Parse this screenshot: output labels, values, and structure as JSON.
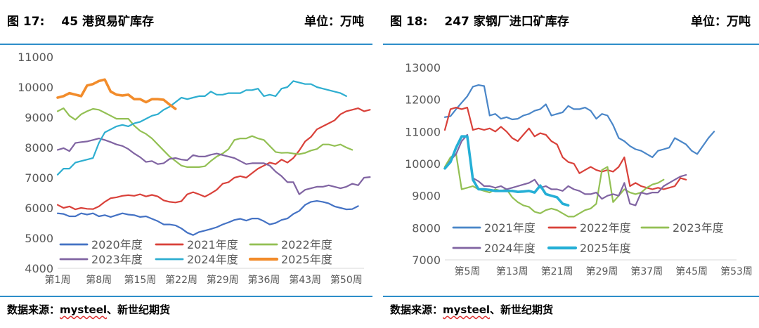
{
  "left": {
    "figure_label": "图 17:",
    "title": "45 港贸易矿库存",
    "unit_label": "单位：万吨",
    "source": {
      "prefix": "数据来源：",
      "name": "mysteel",
      "suffix": "、新世纪期货"
    }
  },
  "right": {
    "figure_label": "图 18:",
    "title": "247 家钢厂进口矿库存",
    "unit_label": "单位：万吨",
    "source": {
      "prefix": "数据来源：",
      "name": "mysteel",
      "suffix": "、新世纪期货"
    }
  },
  "chart_data": [
    {
      "type": "line",
      "title": "45 港贸易矿库存",
      "ylim": [
        4000,
        11000
      ],
      "yticks": [
        "4000",
        "5000",
        "6000",
        "7000",
        "8000",
        "9000",
        "10000",
        "11000"
      ],
      "xlim": [
        1,
        53
      ],
      "xticks": [
        {
          "x": 1,
          "label": "第1周"
        },
        {
          "x": 8,
          "label": "第8周"
        },
        {
          "x": 15,
          "label": "第15周"
        },
        {
          "x": 22,
          "label": "第22周"
        },
        {
          "x": 29,
          "label": "第29周"
        },
        {
          "x": 36,
          "label": "第36周"
        },
        {
          "x": 43,
          "label": "第43周"
        },
        {
          "x": 50,
          "label": "第50周"
        }
      ],
      "grid": false,
      "legend_placement": "bottom",
      "series": [
        {
          "name": "2020年度",
          "color": "#4472c4",
          "width": 2.2,
          "x_start": 1,
          "values": [
            5820,
            5800,
            5720,
            5720,
            5820,
            5780,
            5820,
            5720,
            5760,
            5700,
            5760,
            5820,
            5780,
            5760,
            5700,
            5720,
            5640,
            5560,
            5450,
            5450,
            5420,
            5320,
            5180,
            5100,
            5200,
            5250,
            5300,
            5360,
            5450,
            5520,
            5600,
            5640,
            5580,
            5650,
            5650,
            5560,
            5450,
            5500,
            5600,
            5650,
            5800,
            5900,
            6100,
            6200,
            6230,
            6200,
            6150,
            6050,
            6000,
            5950,
            5960,
            6060
          ]
        },
        {
          "name": "2021年度",
          "color": "#d9413a",
          "width": 2.2,
          "x_start": 1,
          "values": [
            6100,
            6000,
            6050,
            5950,
            6000,
            5970,
            5960,
            6050,
            6200,
            6320,
            6350,
            6400,
            6420,
            6400,
            6450,
            6380,
            6430,
            6380,
            6250,
            6200,
            6180,
            6220,
            6450,
            6520,
            6450,
            6370,
            6480,
            6600,
            6800,
            6850,
            7000,
            7050,
            7000,
            7150,
            7300,
            7400,
            7500,
            7450,
            7600,
            7500,
            7650,
            7900,
            8200,
            8350,
            8600,
            8700,
            8800,
            8900,
            9100,
            9200,
            9250,
            9300,
            9200,
            9250
          ]
        },
        {
          "name": "2022年度",
          "color": "#93c054",
          "width": 2.2,
          "x_start": 1,
          "values": [
            9200,
            9300,
            9050,
            8920,
            9100,
            9200,
            9280,
            9250,
            9150,
            9050,
            8950,
            8950,
            8950,
            8720,
            8550,
            8450,
            8300,
            8100,
            7900,
            7700,
            7550,
            7400,
            7350,
            7350,
            7350,
            7380,
            7550,
            7700,
            7800,
            7950,
            8250,
            8300,
            8300,
            8380,
            8300,
            8250,
            8050,
            7850,
            7820,
            7830,
            7800,
            7780,
            7820,
            7900,
            7950,
            8100,
            8100,
            8050,
            8100,
            8000,
            7920
          ]
        },
        {
          "name": "2023年度",
          "color": "#8064a2",
          "width": 2.2,
          "x_start": 1,
          "values": [
            7920,
            7980,
            7880,
            8150,
            8180,
            8200,
            8250,
            8300,
            8250,
            8180,
            8100,
            8050,
            7950,
            7800,
            7680,
            7520,
            7550,
            7450,
            7480,
            7620,
            7650,
            7600,
            7580,
            7750,
            7700,
            7700,
            7760,
            7800,
            7750,
            7700,
            7650,
            7550,
            7450,
            7480,
            7480,
            7480,
            7400,
            7200,
            7050,
            6850,
            6850,
            6450,
            6600,
            6650,
            6700,
            6700,
            6750,
            6700,
            6650,
            6700,
            6800,
            6750,
            7000,
            7020
          ]
        },
        {
          "name": "2024年度",
          "color": "#2eaed0",
          "width": 2.2,
          "x_start": 1,
          "values": [
            7100,
            7300,
            7300,
            7500,
            7550,
            7600,
            7650,
            8150,
            8500,
            8600,
            8700,
            8750,
            8700,
            8800,
            8850,
            8950,
            9050,
            9100,
            9250,
            9350,
            9500,
            9650,
            9600,
            9650,
            9700,
            9700,
            9850,
            9750,
            9750,
            9800,
            9800,
            9800,
            9900,
            9900,
            9950,
            9700,
            9750,
            9700,
            9950,
            10000,
            10200,
            10150,
            10100,
            10100,
            10000,
            9950,
            9900,
            9850,
            9800,
            9700
          ]
        },
        {
          "name": "2025年度",
          "color": "#f28c2b",
          "width": 3.6,
          "x_start": 1,
          "values": [
            9650,
            9700,
            9800,
            9750,
            9700,
            10050,
            10100,
            10200,
            10250,
            9850,
            9750,
            9720,
            9750,
            9600,
            9600,
            9500,
            9600,
            9600,
            9580,
            9420,
            9280
          ]
        }
      ]
    },
    {
      "type": "line",
      "title": "247 家钢厂进口矿库存",
      "ylim": [
        7000,
        13000
      ],
      "yticks": [
        "7000",
        "8000",
        "9000",
        "10000",
        "11000",
        "12000",
        "13000"
      ],
      "xlim": [
        1,
        53
      ],
      "xticks": [
        {
          "x": 5,
          "label": "第5周"
        },
        {
          "x": 13,
          "label": "第13周"
        },
        {
          "x": 21,
          "label": "第21周"
        },
        {
          "x": 29,
          "label": "第29周"
        },
        {
          "x": 37,
          "label": "第37周"
        },
        {
          "x": 45,
          "label": "第45周"
        },
        {
          "x": 53,
          "label": "第53周"
        }
      ],
      "grid": false,
      "legend_placement": "bottom",
      "series": [
        {
          "name": "2021年度",
          "color": "#4a86c8",
          "width": 2.2,
          "x_start": 1,
          "values": [
            11450,
            11480,
            11700,
            11900,
            12100,
            12400,
            12450,
            12420,
            11500,
            11550,
            11400,
            11450,
            11380,
            11400,
            11500,
            11550,
            11650,
            11700,
            11850,
            11500,
            11550,
            11600,
            11800,
            11700,
            11700,
            11750,
            11650,
            11400,
            11550,
            11500,
            11200,
            10800,
            10700,
            10550,
            10450,
            10400,
            10300,
            10200,
            10400,
            10450,
            10500,
            10800,
            10700,
            10600,
            10400,
            10300,
            10550,
            10800,
            11000
          ]
        },
        {
          "name": "2022年度",
          "color": "#d9413a",
          "width": 2.2,
          "x_start": 1,
          "values": [
            11050,
            11700,
            11750,
            11700,
            11750,
            11050,
            11100,
            11050,
            11100,
            11000,
            11150,
            11000,
            10800,
            10700,
            10900,
            11100,
            10850,
            10950,
            10900,
            10700,
            10600,
            10200,
            10050,
            10000,
            9700,
            9800,
            9900,
            9800,
            9750,
            9800,
            9750,
            9900,
            10200,
            9300,
            9400,
            9300,
            9250,
            9200,
            9250,
            9200,
            9250,
            9300,
            9550,
            9500
          ]
        },
        {
          "name": "2023年度",
          "color": "#93c054",
          "width": 2.2,
          "x_start": 1,
          "values": [
            9900,
            10200,
            10300,
            9200,
            9250,
            9300,
            9200,
            9150,
            9100,
            9200,
            9150,
            9200,
            8950,
            8800,
            8700,
            8650,
            8500,
            8450,
            8550,
            8600,
            8550,
            8450,
            8350,
            8350,
            8450,
            8550,
            8600,
            8750,
            9800,
            9900,
            8800,
            9000,
            9200,
            9100,
            9050,
            9100,
            9250,
            9350,
            9400,
            9500
          ]
        },
        {
          "name": "2024年度",
          "color": "#8064a2",
          "width": 2.2,
          "x_start": 1,
          "values": [
            9850,
            10100,
            10300,
            10700,
            10900,
            9550,
            9450,
            9300,
            9300,
            9250,
            9300,
            9200,
            9250,
            9300,
            9350,
            9400,
            9500,
            9250,
            9300,
            9200,
            9200,
            9150,
            9300,
            9200,
            9150,
            9050,
            9050,
            9100,
            8900,
            9000,
            9050,
            9000,
            9400,
            8750,
            8700,
            9100,
            9050,
            9100,
            9100,
            9300,
            9400,
            9500,
            9600,
            9650
          ]
        },
        {
          "name": "2025年度",
          "color": "#25afd6",
          "width": 3.6,
          "x_start": 1,
          "values": [
            9850,
            10050,
            10500,
            10850,
            10850,
            9500,
            9200,
            9200,
            9180,
            9150,
            9150,
            9150,
            9150,
            9120,
            9130,
            9150,
            9100,
            9320,
            9050,
            9000,
            8950,
            8750,
            8700
          ]
        }
      ]
    }
  ]
}
